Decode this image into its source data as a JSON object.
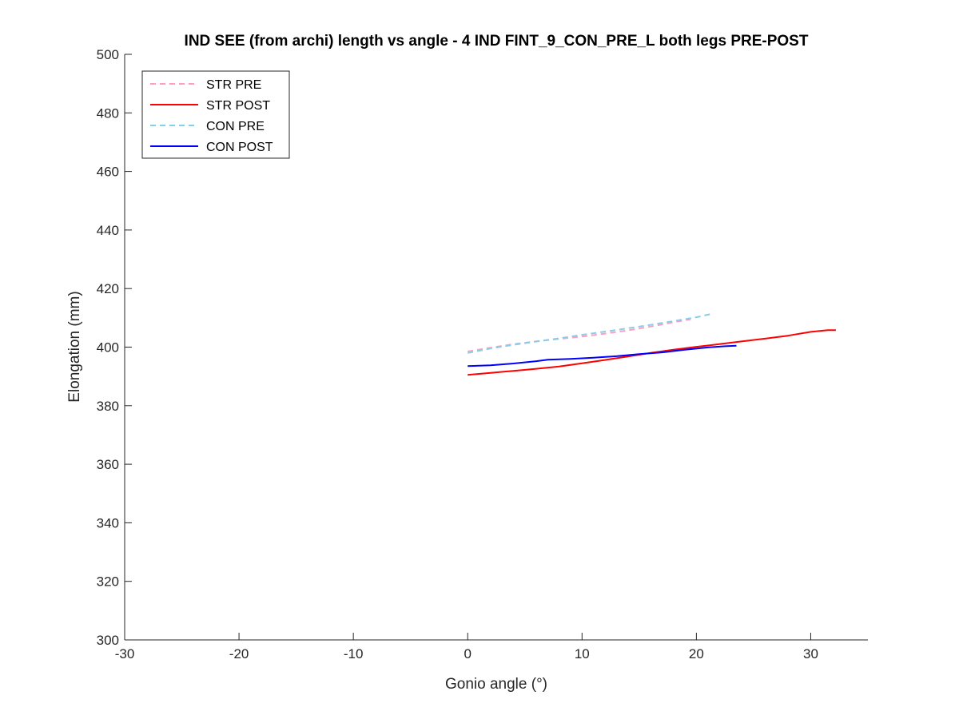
{
  "chart_data": {
    "type": "line",
    "title": "IND SEE (from archi) length vs angle - 4 IND FINT_9_CON_PRE_L both legs PRE-POST",
    "xlabel": "Gonio angle (°)",
    "ylabel": "Elongation (mm)",
    "xlim": [
      -30,
      35
    ],
    "ylim": [
      300,
      500
    ],
    "xticks": [
      -30,
      -20,
      -10,
      0,
      10,
      20,
      30
    ],
    "yticks": [
      300,
      320,
      340,
      360,
      380,
      400,
      420,
      440,
      460,
      480,
      500
    ],
    "grid": false,
    "legend_location": "top-left",
    "series": [
      {
        "name": "STR PRE",
        "color": "#ff9ec0",
        "style": "dashed",
        "x": [
          0,
          2,
          4,
          6,
          8,
          10,
          12,
          14,
          16,
          18,
          19.5
        ],
        "y": [
          398.5,
          399.8,
          401.0,
          402.0,
          402.8,
          403.6,
          404.6,
          405.7,
          407.0,
          408.5,
          409.5
        ]
      },
      {
        "name": "STR POST",
        "color": "#ff0000",
        "style": "solid",
        "x": [
          0,
          2,
          4,
          6,
          8,
          10,
          12,
          14,
          16,
          18,
          20,
          22,
          24,
          26,
          28,
          30,
          31.5,
          32.2
        ],
        "y": [
          390.5,
          391.2,
          391.9,
          392.6,
          393.4,
          394.5,
          395.6,
          396.8,
          398.0,
          399.1,
          400.1,
          401.0,
          402.0,
          402.9,
          403.9,
          405.2,
          405.8,
          405.8
        ]
      },
      {
        "name": "CON PRE",
        "color": "#87ceeb",
        "style": "dashed",
        "x": [
          0,
          2,
          4,
          6,
          8,
          10,
          12,
          14,
          16,
          18,
          20,
          21.5
        ],
        "y": [
          398.0,
          399.5,
          400.8,
          401.9,
          403.0,
          404.2,
          405.3,
          406.4,
          407.6,
          408.9,
          410.2,
          411.5
        ]
      },
      {
        "name": "CON POST",
        "color": "#0000ff",
        "style": "solid",
        "x": [
          0,
          2,
          4,
          6,
          7,
          9,
          11,
          13,
          15,
          17,
          19,
          21,
          22.5,
          23.5
        ],
        "y": [
          393.5,
          393.8,
          394.4,
          395.2,
          395.7,
          396.0,
          396.4,
          396.9,
          397.6,
          398.2,
          399.1,
          399.9,
          400.3,
          400.5
        ]
      }
    ]
  }
}
